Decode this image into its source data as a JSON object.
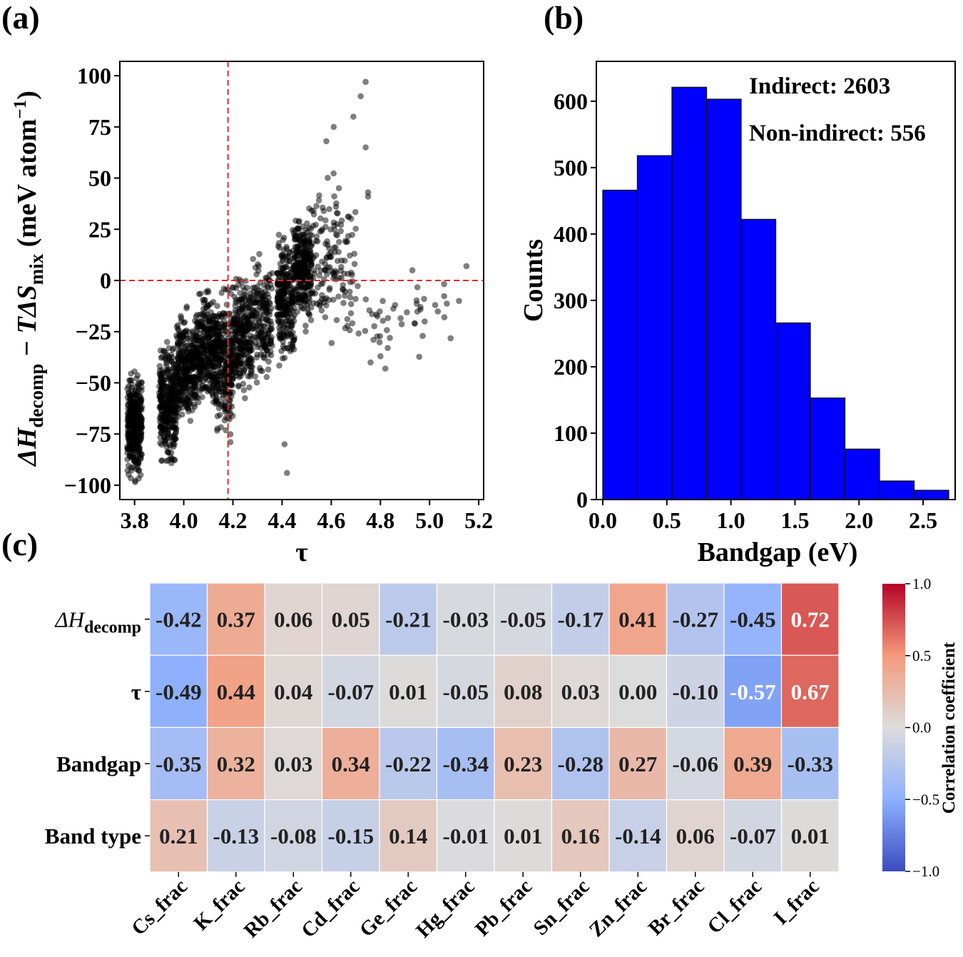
{
  "panels": {
    "a": "(a)",
    "b": "(b)",
    "c": "(c)"
  },
  "chart_data": [
    {
      "id": "a",
      "type": "scatter",
      "title": "",
      "xlabel": "τ",
      "ylabel_parts": [
        "ΔH",
        "decomp",
        " − TΔS",
        "mix",
        " (meV atom",
        "−1",
        ")"
      ],
      "xlim": [
        3.74,
        5.22
      ],
      "ylim": [
        -107,
        107
      ],
      "xticks": [
        3.8,
        4.0,
        4.2,
        4.4,
        4.6,
        4.8,
        5.0,
        5.2
      ],
      "xtick_labels": [
        "3.8",
        "4.0",
        "4.2",
        "4.4",
        "4.6",
        "4.8",
        "5.0",
        "5.2"
      ],
      "yticks": [
        100,
        75,
        50,
        25,
        0,
        -25,
        -50,
        -75,
        -100
      ],
      "ytick_labels": [
        "100",
        "75",
        "50",
        "25",
        "0",
        "−25",
        "−50",
        "−75",
        "−100"
      ],
      "ref_lines": {
        "x": 4.18,
        "y": 0,
        "color": "#e8242a",
        "style": "dashed"
      },
      "point_color": "#000000",
      "point_alpha": 0.5,
      "clusters": [
        {
          "x": [
            3.77,
            3.83
          ],
          "y": [
            -103,
            -38
          ],
          "n": 340
        },
        {
          "x": [
            3.9,
            3.97
          ],
          "y": [
            -98,
            -25
          ],
          "n": 320
        },
        {
          "x": [
            3.97,
            4.05
          ],
          "y": [
            -80,
            -8
          ],
          "n": 300
        },
        {
          "x": [
            4.05,
            4.13
          ],
          "y": [
            -70,
            4
          ],
          "n": 300
        },
        {
          "x": [
            4.13,
            4.2
          ],
          "y": [
            -85,
            5
          ],
          "n": 270
        },
        {
          "x": [
            4.2,
            4.28
          ],
          "y": [
            -62,
            10
          ],
          "n": 260
        },
        {
          "x": [
            4.28,
            4.36
          ],
          "y": [
            -58,
            18
          ],
          "n": 170
        },
        {
          "x": [
            4.38,
            4.45
          ],
          "y": [
            -50,
            32
          ],
          "n": 260
        },
        {
          "x": [
            4.45,
            4.52
          ],
          "y": [
            -30,
            42
          ],
          "n": 260
        },
        {
          "x": [
            4.52,
            4.7
          ],
          "y": [
            -40,
            60
          ],
          "n": 150
        },
        {
          "x": [
            4.7,
            5.1
          ],
          "y": [
            -45,
            10
          ],
          "n": 40
        }
      ],
      "outliers": [
        {
          "x": 4.74,
          "y": 97
        },
        {
          "x": 4.72,
          "y": 90
        },
        {
          "x": 4.69,
          "y": 80
        },
        {
          "x": 4.61,
          "y": 75
        },
        {
          "x": 4.74,
          "y": 65
        },
        {
          "x": 4.58,
          "y": 68
        },
        {
          "x": 4.75,
          "y": 43
        },
        {
          "x": 4.75,
          "y": 41
        },
        {
          "x": 5.15,
          "y": 7
        },
        {
          "x": 5.12,
          "y": -10
        },
        {
          "x": 5.06,
          "y": -18
        },
        {
          "x": 4.98,
          "y": -20
        },
        {
          "x": 4.94,
          "y": -21
        },
        {
          "x": 4.8,
          "y": -37
        },
        {
          "x": 4.82,
          "y": -43
        },
        {
          "x": 4.76,
          "y": -40
        },
        {
          "x": 4.41,
          "y": -80
        },
        {
          "x": 4.42,
          "y": -94
        },
        {
          "x": 4.93,
          "y": 5
        },
        {
          "x": 4.86,
          "y": -12
        }
      ]
    },
    {
      "id": "b",
      "type": "bar",
      "title": "",
      "xlabel": "Bandgap (eV)",
      "ylabel": "Counts",
      "xlim": [
        -0.05,
        2.75
      ],
      "ylim": [
        0,
        660
      ],
      "xticks": [
        0.0,
        0.5,
        1.0,
        1.5,
        2.0,
        2.5
      ],
      "xtick_labels": [
        "0.0",
        "0.5",
        "1.0",
        "1.5",
        "2.0",
        "2.5"
      ],
      "yticks": [
        0,
        100,
        200,
        300,
        400,
        500,
        600
      ],
      "ytick_labels": [
        "0",
        "100",
        "200",
        "300",
        "400",
        "500",
        "600"
      ],
      "bin_edges": [
        0.0,
        0.27,
        0.54,
        0.81,
        1.08,
        1.35,
        1.62,
        1.89,
        2.16,
        2.43,
        2.7
      ],
      "values": [
        466,
        518,
        621,
        603,
        422,
        266,
        153,
        76,
        28,
        14
      ],
      "bar_color": "#0000ff",
      "annotations": [
        "Indirect: 2603",
        "Non-indirect: 556"
      ]
    },
    {
      "id": "c",
      "type": "heatmap",
      "title": "",
      "row_labels": [
        {
          "main": "ΔH",
          "sub": "decomp"
        },
        {
          "main": "τ",
          "sub": ""
        },
        {
          "main": "Bandgap",
          "sub": ""
        },
        {
          "main": "Band type",
          "sub": ""
        }
      ],
      "col_labels": [
        "Cs_frac",
        "K_frac",
        "Rb_frac",
        "Cd_frac",
        "Ge_frac",
        "Hg_frac",
        "Pb_frac",
        "Sn_frac",
        "Zn_frac",
        "Br_frac",
        "Cl_frac",
        "I_frac"
      ],
      "values": [
        [
          -0.42,
          0.37,
          0.06,
          0.05,
          -0.21,
          -0.03,
          -0.05,
          -0.17,
          0.41,
          -0.27,
          -0.45,
          0.72
        ],
        [
          -0.49,
          0.44,
          0.04,
          -0.07,
          0.01,
          -0.05,
          0.08,
          0.03,
          0.0,
          -0.1,
          -0.57,
          0.67
        ],
        [
          -0.35,
          0.32,
          0.03,
          0.34,
          -0.22,
          -0.34,
          0.23,
          -0.28,
          0.27,
          -0.06,
          0.39,
          -0.33
        ],
        [
          0.21,
          -0.13,
          -0.08,
          -0.15,
          0.14,
          -0.01,
          0.01,
          0.16,
          -0.14,
          0.06,
          -0.07,
          0.01
        ]
      ],
      "cell_labels": [
        [
          "-0.42",
          "0.37",
          "0.06",
          "0.05",
          "-0.21",
          "-0.03",
          "-0.05",
          "-0.17",
          "0.41",
          "-0.27",
          "-0.45",
          "0.72"
        ],
        [
          "-0.49",
          "0.44",
          "0.04",
          "-0.07",
          "0.01",
          "-0.05",
          "0.08",
          "0.03",
          "0.00",
          "-0.10",
          "-0.57",
          "0.67"
        ],
        [
          "-0.35",
          "0.32",
          "0.03",
          "0.34",
          "-0.22",
          "-0.34",
          "0.23",
          "-0.28",
          "0.27",
          "-0.06",
          "0.39",
          "-0.33"
        ],
        [
          "0.21",
          "-0.13",
          "-0.08",
          "-0.15",
          "0.14",
          "-0.01",
          "0.01",
          "0.16",
          "-0.14",
          "0.06",
          "-0.07",
          "0.01"
        ]
      ],
      "vmin": -1.0,
      "vmax": 1.0,
      "colormap": "coolwarm",
      "colorbar_label": "Correlation coefficient",
      "colorbar_ticks": [
        1.0,
        0.5,
        0.0,
        -0.5,
        -1.0
      ],
      "colorbar_tick_labels": [
        "1.0",
        "0.5",
        "0.0",
        "−0.5",
        "−1.0"
      ]
    }
  ]
}
